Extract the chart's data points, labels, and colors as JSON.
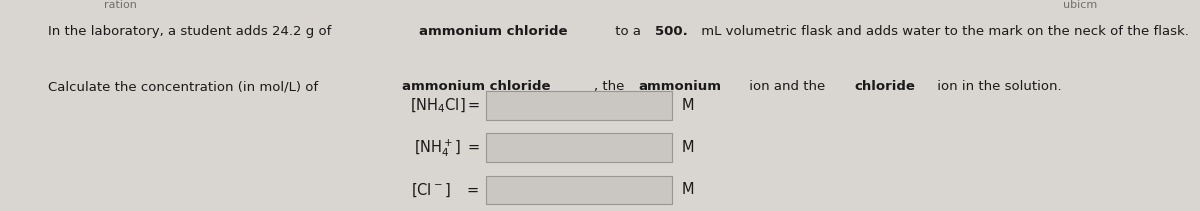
{
  "background_color": "#d9d5d1",
  "text_color": "#1a1a1a",
  "line1_segments": [
    [
      "In the laboratory, a student adds 24.2 g of ",
      false
    ],
    [
      "ammonium chloride",
      true
    ],
    [
      " to a ",
      false
    ],
    [
      "500.",
      true
    ],
    [
      " mL volumetric flask and adds water to the mark on the neck of the flask.",
      false
    ]
  ],
  "line2_segments": [
    [
      "Calculate the concentration (in mol/L) of ",
      false
    ],
    [
      "ammonium chloride",
      true
    ],
    [
      ", the ",
      false
    ],
    [
      "ammonium",
      true
    ],
    [
      " ion and the ",
      false
    ],
    [
      "chloride",
      true
    ],
    [
      " ion in the solution.",
      false
    ]
  ],
  "header_left": "ration",
  "header_right": "ubicm",
  "row_labels": [
    "$[\\mathrm{NH_4Cl}] =$",
    "$[\\mathrm{NH_4^+}] \\;=$",
    "$[\\mathrm{Cl^-}] \\quad=$"
  ],
  "box_facecolor": "#cac6c2",
  "box_edgecolor": "#999590",
  "unit": "M",
  "font_size_para": 9.5,
  "font_size_label": 10.5,
  "font_size_header": 8.0
}
